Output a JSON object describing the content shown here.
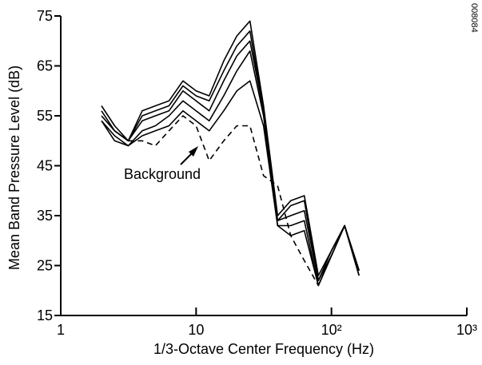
{
  "chart_data": {
    "type": "line",
    "xlabel": "1/3-Octave Center Frequency (Hz)",
    "ylabel": "Mean Band Pressure Level (dB)",
    "xscale": "log",
    "x": [
      2,
      2.5,
      3.15,
      4,
      5,
      6.3,
      8,
      10,
      12.5,
      16,
      20,
      25,
      31.5,
      40,
      50,
      63,
      80,
      100,
      125,
      160
    ],
    "xlim": [
      1,
      1000
    ],
    "xticks": [
      1,
      10,
      {
        "value": 100,
        "label": "10²"
      },
      {
        "value": 1000,
        "label": "10³"
      }
    ],
    "ylim": [
      15,
      75
    ],
    "yticks": [
      15,
      25,
      35,
      45,
      55,
      65,
      75
    ],
    "series": [
      {
        "color": "#000000",
        "dash": false,
        "values": [
          57,
          53,
          50,
          56,
          57,
          58,
          62,
          60,
          59,
          66,
          71,
          74,
          57,
          35,
          38,
          39,
          23,
          28,
          33,
          24
        ]
      },
      {
        "color": "#000000",
        "dash": false,
        "values": [
          56,
          52,
          50,
          55,
          56,
          57,
          61,
          59,
          58,
          64,
          69,
          72,
          56,
          34,
          37,
          38,
          22,
          28,
          33,
          24
        ]
      },
      {
        "color": "#000000",
        "dash": false,
        "values": [
          55,
          52,
          50,
          54,
          55,
          56,
          60,
          58,
          56,
          62,
          67,
          70,
          56,
          34,
          35,
          36,
          22,
          27,
          33,
          24
        ]
      },
      {
        "color": "#000000",
        "dash": false,
        "values": [
          54,
          51,
          49,
          52,
          53,
          55,
          58,
          56,
          54,
          59,
          64,
          68,
          55,
          33,
          33,
          34,
          21,
          27,
          33,
          23
        ]
      },
      {
        "color": "#000000",
        "dash": false,
        "values": [
          54,
          50,
          49,
          51,
          52,
          53,
          56,
          54,
          52,
          56,
          60,
          62,
          53,
          33,
          31,
          32,
          21,
          27,
          33,
          23
        ]
      },
      {
        "color": "#000000",
        "dash": true,
        "values": [
          null,
          null,
          50,
          50,
          49,
          52,
          55,
          53,
          46,
          50,
          53,
          53,
          43,
          41,
          31,
          26,
          21,
          null,
          null,
          null
        ]
      }
    ],
    "annotations": [
      "Background"
    ],
    "code": "008084"
  }
}
